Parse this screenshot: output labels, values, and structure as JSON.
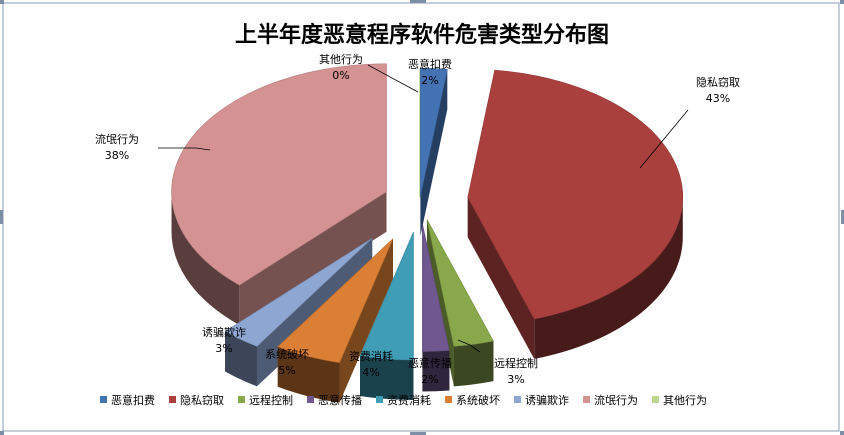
{
  "chart_data": {
    "type": "pie",
    "title": "上半年度恶意程序软件危害类型分布图",
    "categories": [
      "恶意扣费",
      "隐私窃取",
      "远程控制",
      "恶意传播",
      "资费消耗",
      "系统破坏",
      "诱骗欺诈",
      "流氓行为",
      "其他行为"
    ],
    "values": [
      2,
      43,
      3,
      2,
      4,
      5,
      3,
      38,
      0
    ],
    "value_labels": [
      "2%",
      "43%",
      "3%",
      "2%",
      "4%",
      "5%",
      "3%",
      "38%",
      "0%"
    ],
    "colors": [
      "#4473b4",
      "#a9403e",
      "#89a84b",
      "#71578f",
      "#3f9db5",
      "#db7f34",
      "#8ea6d2",
      "#d49392",
      "#bfd58e"
    ],
    "exploded": true,
    "three_d": true,
    "legend": "bottom"
  }
}
